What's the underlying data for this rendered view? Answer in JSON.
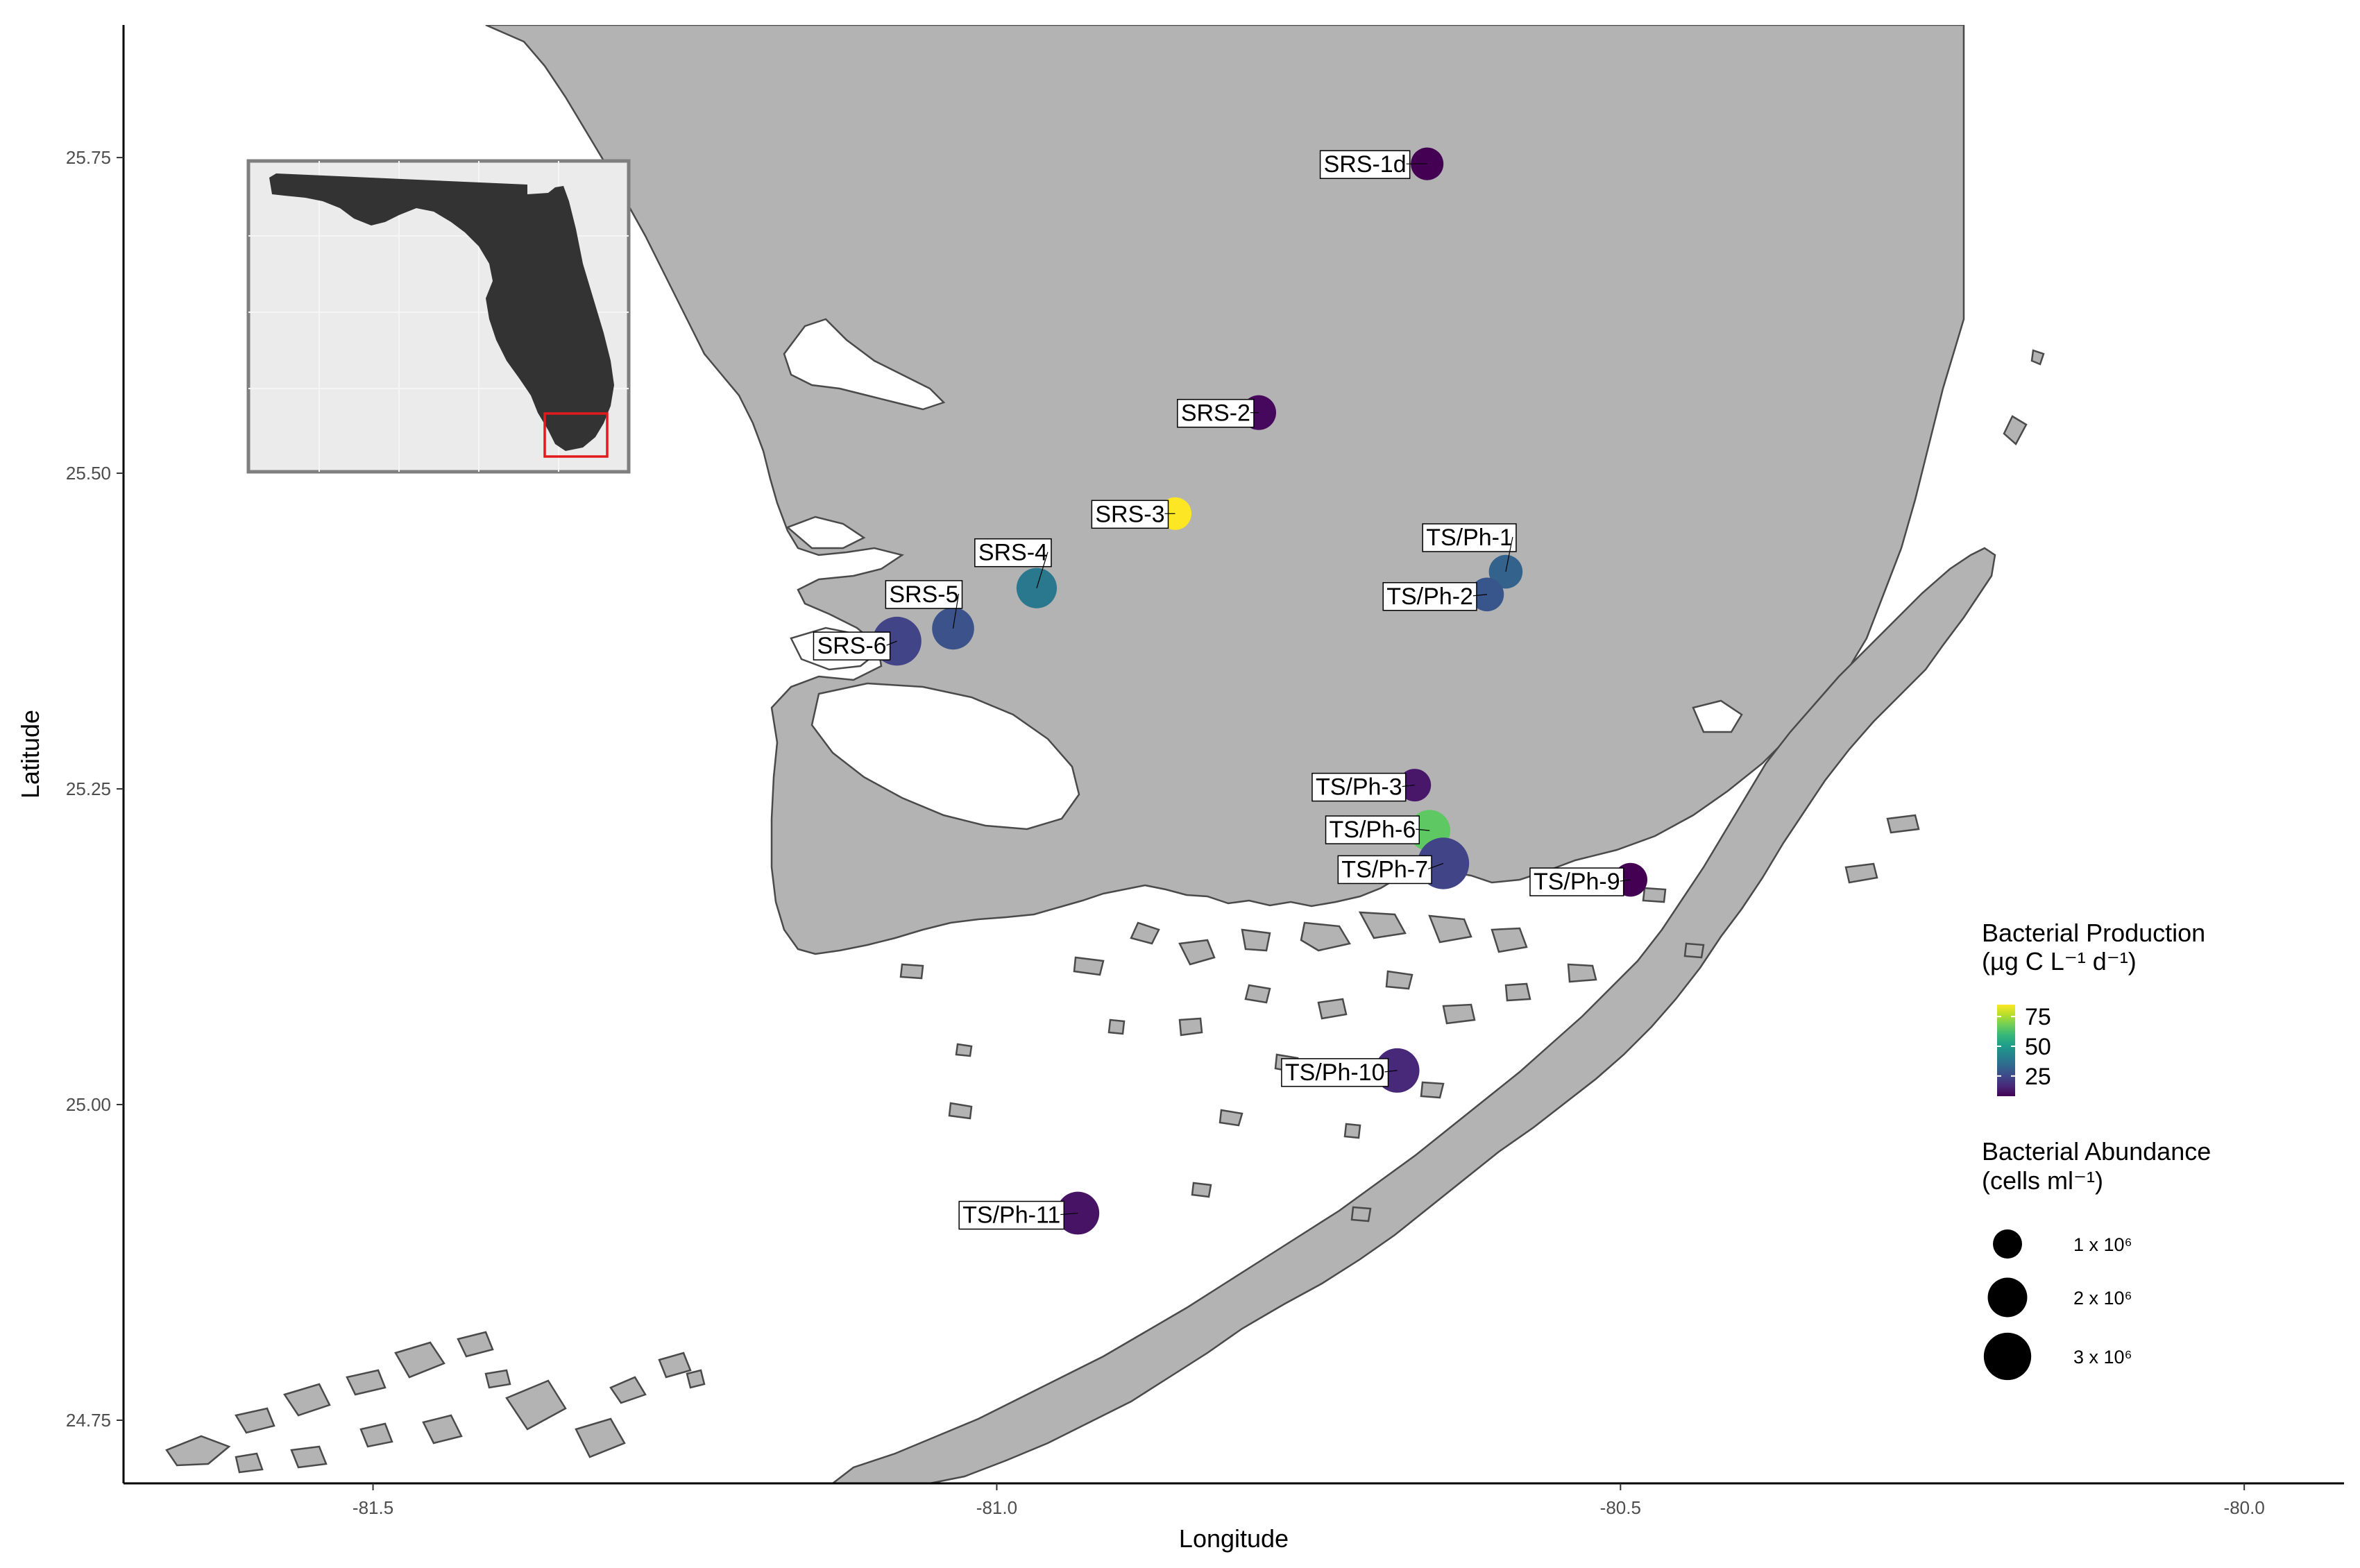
{
  "axes": {
    "xlabel": "Longitude",
    "ylabel": "Latitude",
    "xlim": [
      -81.7,
      -79.92
    ],
    "ylim": [
      24.7,
      25.855
    ],
    "xticks": [
      {
        "value": -81.5,
        "label": "-81.5"
      },
      {
        "value": -81.0,
        "label": "-81.0"
      },
      {
        "value": -80.5,
        "label": "-80.5"
      },
      {
        "value": -80.0,
        "label": "-80.0"
      }
    ],
    "yticks": [
      {
        "value": 24.75,
        "label": "24.75"
      },
      {
        "value": 25.0,
        "label": "25.00"
      },
      {
        "value": 25.25,
        "label": "25.25"
      },
      {
        "value": 25.5,
        "label": "25.50"
      },
      {
        "value": 25.75,
        "label": "25.75"
      }
    ]
  },
  "colors": {
    "land": "#b3b3b3",
    "land_outline": "#4a4a4a",
    "inset_background": "#ebebeb",
    "inset_land": "#333333",
    "inset_frame": "#7f7f7f",
    "inset_highlight": "#e31a1c"
  },
  "inset": {
    "name": "florida-inset-map"
  },
  "chart_data": {
    "type": "scatter",
    "x_variable": "Longitude",
    "y_variable": "Latitude",
    "color_variable": "Bacterial Production",
    "size_variable": "Bacterial Abundance",
    "points": [
      {
        "label": "SRS-1d",
        "lon": -80.655,
        "lat": 25.745,
        "production": 10,
        "abundance": 1.3,
        "color": "#440154"
      },
      {
        "label": "SRS-2",
        "lon": -80.79,
        "lat": 25.548,
        "production": 10,
        "abundance": 1.5,
        "color": "#46085c"
      },
      {
        "label": "SRS-3",
        "lon": -80.857,
        "lat": 25.468,
        "production": 85,
        "abundance": 1.3,
        "color": "#fde725"
      },
      {
        "label": "SRS-4",
        "lon": -80.968,
        "lat": 25.409,
        "production": 38,
        "abundance": 2.1,
        "color": "#2a788e"
      },
      {
        "label": "SRS-5",
        "lon": -81.035,
        "lat": 25.377,
        "production": 30,
        "abundance": 2.3,
        "color": "#3b528b"
      },
      {
        "label": "SRS-6",
        "lon": -81.08,
        "lat": 25.367,
        "production": 25,
        "abundance": 3.2,
        "color": "#414487"
      },
      {
        "label": "TS/Ph-1",
        "lon": -80.592,
        "lat": 25.422,
        "production": 32,
        "abundance": 1.4,
        "color": "#33638d"
      },
      {
        "label": "TS/Ph-2",
        "lon": -80.607,
        "lat": 25.404,
        "production": 30,
        "abundance": 1.4,
        "color": "#39568c"
      },
      {
        "label": "TS/Ph-3",
        "lon": -80.665,
        "lat": 25.253,
        "production": 12,
        "abundance": 1.3,
        "color": "#481769"
      },
      {
        "label": "TS/Ph-6",
        "lon": -80.653,
        "lat": 25.217,
        "production": 62,
        "abundance": 2.2,
        "color": "#5ec962"
      },
      {
        "label": "TS/Ph-7",
        "lon": -80.642,
        "lat": 25.191,
        "production": 25,
        "abundance": 3.6,
        "color": "#414487"
      },
      {
        "label": "TS/Ph-9",
        "lon": -80.492,
        "lat": 25.178,
        "production": 8,
        "abundance": 1.4,
        "color": "#440154"
      },
      {
        "label": "TS/Ph-10",
        "lon": -80.679,
        "lat": 25.027,
        "production": 18,
        "abundance": 2.6,
        "color": "#482878"
      },
      {
        "label": "TS/Ph-11",
        "lon": -80.935,
        "lat": 24.914,
        "production": 12,
        "abundance": 2.4,
        "color": "#471365"
      }
    ],
    "color_legend": {
      "title_line1": "Bacterial Production",
      "title_line2": "(µg C L⁻¹ d⁻¹)",
      "ticks": [
        "75",
        "50",
        "25"
      ],
      "tick_values": [
        75,
        50,
        25
      ],
      "range": [
        8,
        85
      ],
      "palette": [
        "#fde725",
        "#b5de2b",
        "#6ece58",
        "#35b779",
        "#1f9e89",
        "#26828e",
        "#31688e",
        "#3e4989",
        "#482878",
        "#440154"
      ]
    },
    "size_legend": {
      "title_line1": "Bacterial Abundance",
      "title_line2": "(cells ml⁻¹)",
      "entries": [
        {
          "label": "1 x 10⁶",
          "value": 1
        },
        {
          "label": "2 x 10⁶",
          "value": 2
        },
        {
          "label": "3 x 10⁶",
          "value": 3
        }
      ]
    }
  }
}
